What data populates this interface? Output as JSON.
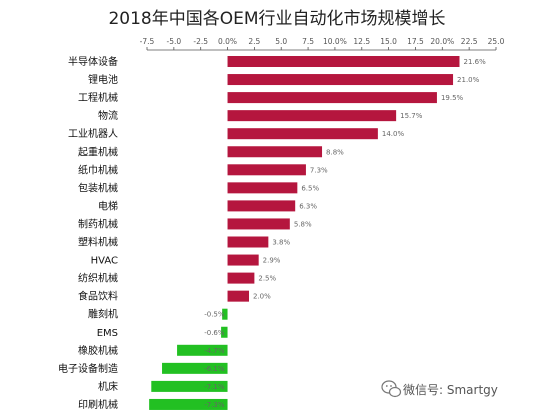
{
  "chart_data": {
    "type": "bar",
    "orientation": "horizontal",
    "title": "2018年中国各OEM行业自动化市场规模增长",
    "categories": [
      "半导体设备",
      "锂电池",
      "工程机械",
      "物流",
      "工业机器人",
      "起重机械",
      "纸巾机械",
      "包装机械",
      "电梯",
      "制药机械",
      "塑料机械",
      "HVAC",
      "纺织机械",
      "食品饮料",
      "雕刻机",
      "EMS",
      "橡胶机械",
      "电子设备制造",
      "机床",
      "印刷机械"
    ],
    "values": [
      21.6,
      21.0,
      19.5,
      15.7,
      14.0,
      8.8,
      7.3,
      6.5,
      6.3,
      5.8,
      3.8,
      2.9,
      2.5,
      2.0,
      -0.5,
      -0.6,
      -4.7,
      -6.1,
      -7.1,
      -7.3
    ],
    "value_labels": [
      "21.6%",
      "21.0%",
      "19.5%",
      "15.7%",
      "14.0%",
      "8.8%",
      "7.3%",
      "6.5%",
      "6.3%",
      "5.8%",
      "3.8%",
      "2.9%",
      "2.5%",
      "2.0%",
      "-0.5%",
      "-0.6%",
      "-4.7%",
      "-6.1%",
      "-7.1%",
      "-7.3%"
    ],
    "xlim": [
      -7.5,
      25.0
    ],
    "xticks": [
      "-7.5",
      "-5.0",
      "-2.5",
      "0.0%",
      "2.5",
      "5.0",
      "7.5",
      "10.0%",
      "12.5",
      "15.0",
      "17.5",
      "20.0%",
      "22.5",
      "25.0"
    ],
    "xtick_values": [
      -7.5,
      -5.0,
      -2.5,
      0.0,
      2.5,
      5.0,
      7.5,
      10.0,
      12.5,
      15.0,
      17.5,
      20.0,
      22.5,
      25.0
    ],
    "axis_position": "top",
    "grid": false,
    "colors": {
      "positive": "#b5163e",
      "negative": "#22c022"
    }
  },
  "watermark": {
    "icon": "wechat-icon",
    "text": "微信号: Smartgy"
  }
}
